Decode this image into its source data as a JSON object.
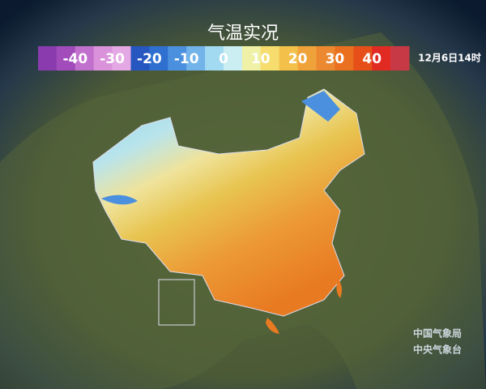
{
  "title": "气温实况",
  "legend": {
    "labels": [
      -40,
      -30,
      -20,
      -10,
      0,
      10,
      20,
      30,
      40
    ],
    "colors": [
      "#8a3cae",
      "#a24cbc",
      "#c170cd",
      "#da93da",
      "#e4a9e4",
      "#2656c0",
      "#2f6fd0",
      "#4a90de",
      "#72b4ea",
      "#a2daf2",
      "#cbeef3",
      "#eef1a6",
      "#f6dd6e",
      "#f3c04a",
      "#f0a23a",
      "#ec8830",
      "#ea7020",
      "#e65018",
      "#e02a22",
      "#c73a45"
    ]
  },
  "timestamp": "12月6日14时",
  "credits": [
    "中国气象局",
    "中央气象台"
  ]
}
